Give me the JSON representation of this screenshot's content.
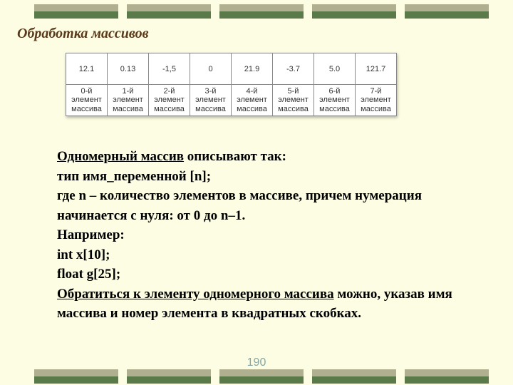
{
  "decor": {
    "top_color1": "#b0b090",
    "top_color2": "#5a7a4a",
    "bottom_color1": "#b0b090",
    "bottom_color2": "#5a7a4a",
    "block_count": 5
  },
  "title": {
    "text": "Обработка массивов",
    "color": "#5a3a1a"
  },
  "array_table": {
    "values": [
      "12.1",
      "0.13",
      "-1,5",
      "0",
      "21.9",
      "-3.7",
      "5.0",
      "121.7"
    ],
    "labels": [
      "0-й\nэлемент\nмассива",
      "1-й\nэлемент\nмассива",
      "2-й\nэлемент\nмассива",
      "3-й\nэлемент\nмассива",
      "4-й\nэлемент\nмассива",
      "5-й\nэлемент\nмассива",
      "6-й\nэлемент\nмассива",
      "7-й\nэлемент\nмассива"
    ]
  },
  "body": {
    "l1a": "Одномерный массив",
    "l1b": " описывают так:",
    "l2": "тип имя_переменной [n];",
    "l3": "где n – количество элементов в массиве, причем нумерация начинается с нуля: от 0 до n–1.",
    "l4": "Например:",
    "l5": "int x[10];",
    "l6": "float g[25];",
    "l7a": "Обратиться к элементу одномерного массива",
    "l7b": " можно, указав имя массива и номер элемента в квадратных скобках."
  },
  "page_number": "190"
}
